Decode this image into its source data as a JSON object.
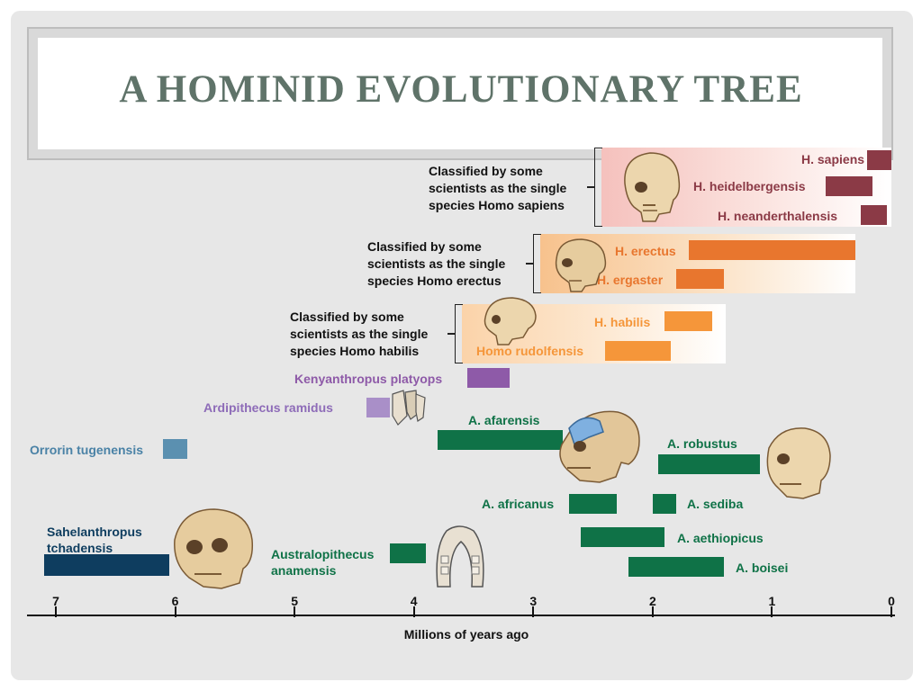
{
  "title": "A HOMINID EVOLUTIONARY TREE",
  "colors": {
    "title": "#5f7369",
    "sapiens_bar": "#8b3a46",
    "erectus_bar": "#e8762e",
    "habilis_bar": "#f5963a",
    "kenyanthropus_bar": "#8e5aa8",
    "ardipithecus_bar": "#a98fc8",
    "orrorin_bar": "#5b90b0",
    "australopithecus_bar": "#0f7247",
    "sahelanthropus_bar": "#0e3d5f"
  },
  "notes": {
    "sapiens": [
      "Classified by some",
      "scientists as the single",
      "species Homo sapiens"
    ],
    "erectus": [
      "Classified by some",
      "scientists as the single",
      "species Homo erectus"
    ],
    "habilis": [
      "Classified by some",
      "scientists as the single",
      "species Homo habilis"
    ]
  },
  "axis": {
    "title": "Millions of years ago",
    "ticks": [
      "7",
      "6",
      "5",
      "4",
      "3",
      "2",
      "1",
      "0"
    ]
  },
  "species": [
    {
      "name": "H. sapiens",
      "start": 0.2,
      "end": 0.0
    },
    {
      "name": "H. heidelbergensis",
      "start": 0.55,
      "end": 0.16
    },
    {
      "name": "H. neanderthalensis",
      "start": 0.26,
      "end": 0.04
    },
    {
      "name": "H. erectus",
      "start": 1.7,
      "end": 0.3
    },
    {
      "name": "H. ergaster",
      "start": 1.8,
      "end": 1.4
    },
    {
      "name": "H. habilis",
      "start": 1.9,
      "end": 1.5
    },
    {
      "name": "Homo rudolfensis",
      "start": 2.4,
      "end": 1.85
    },
    {
      "name": "Kenyanthropus platyops",
      "start": 3.55,
      "end": 3.2
    },
    {
      "name": "Ardipithecus ramidus",
      "start": 4.4,
      "end": 4.2
    },
    {
      "name": "A. afarensis",
      "start": 3.8,
      "end": 2.75
    },
    {
      "name": "A. robustus",
      "start": 1.95,
      "end": 1.1
    },
    {
      "name": "Orrorin tugenensis",
      "start": 6.1,
      "end": 5.9
    },
    {
      "name": "A. africanus",
      "start": 2.7,
      "end": 2.3
    },
    {
      "name": "A. sediba",
      "start": 2.0,
      "end": 1.8
    },
    {
      "name": "A. aethiopicus",
      "start": 2.6,
      "end": 1.9
    },
    {
      "name": "A. boisei",
      "start": 2.2,
      "end": 1.4
    },
    {
      "name": "Sahelanthropus tchadensis",
      "start": 7.1,
      "end": 6.05
    },
    {
      "name": "Australopithecus anamensis",
      "start": 4.2,
      "end": 3.9
    }
  ]
}
